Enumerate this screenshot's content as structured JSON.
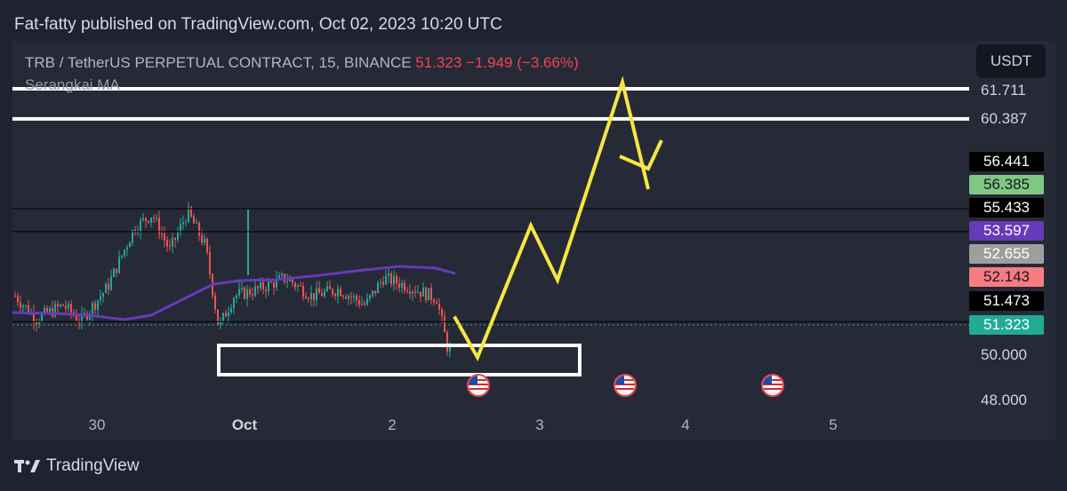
{
  "header": {
    "published_text": "Fat-fatty published on TradingView.com, Oct 02, 2023 10:20 UTC"
  },
  "legend": {
    "symbol": "TRB / TetherUS PERPETUAL CONTRACT, 15, BINANCE",
    "last_price": "51.323",
    "change": "−1.949 (−3.66%)",
    "indicator": "Serangkai    MA"
  },
  "currency_button": {
    "label": "USDT"
  },
  "price_axis": {
    "labels": [
      {
        "text": "61.711"
      },
      {
        "text": "60.387"
      },
      {
        "text": "50.000"
      },
      {
        "text": "48.000"
      }
    ],
    "tags": [
      {
        "text": "56.441",
        "bg": "#000000",
        "fg": "#ffffff"
      },
      {
        "text": "56.385",
        "bg": "#81c784",
        "fg": "#131722"
      },
      {
        "text": "55.433",
        "bg": "#000000",
        "fg": "#ffffff"
      },
      {
        "text": "53.597",
        "bg": "#673ab7",
        "fg": "#ffffff"
      },
      {
        "text": "52.655",
        "bg": "#9e9e9e",
        "fg": "#ffffff"
      },
      {
        "text": "52.143",
        "bg": "#f77c80",
        "fg": "#131722"
      },
      {
        "text": "51.473",
        "bg": "#000000",
        "fg": "#ffffff"
      },
      {
        "text": "51.323",
        "bg": "#22ab94",
        "fg": "#ffffff"
      }
    ]
  },
  "time_axis": {
    "labels": [
      {
        "text": "30",
        "bold": false
      },
      {
        "text": "Oct",
        "bold": true
      },
      {
        "text": "2",
        "bold": false
      },
      {
        "text": "3",
        "bold": false
      },
      {
        "text": "4",
        "bold": false
      },
      {
        "text": "5",
        "bold": false
      }
    ]
  },
  "events": [
    {
      "name": "us-economic-event"
    },
    {
      "name": "us-economic-event"
    },
    {
      "name": "us-economic-event"
    }
  ],
  "footer": {
    "brand": "TradingView"
  },
  "colors": {
    "background": "#1f2230",
    "chart_bg": "#262a37",
    "up_candle": "#26a69a",
    "down_candle": "#ef5350",
    "ma_line": "#673ab7",
    "projection": "#f5e642",
    "level_line": "#ffffff"
  },
  "chart_data": {
    "type": "candlestick",
    "symbol": "TRB / TetherUS PERPETUAL CONTRACT",
    "interval": "15",
    "exchange": "BINANCE",
    "horizontal_levels": [
      61.711,
      60.387,
      56.441,
      55.433,
      51.473
    ],
    "support_zone": {
      "low": 49.4,
      "high": 50.6
    },
    "projection_path": [
      51.7,
      49.9,
      55.7,
      53.3,
      62.0,
      57.3,
      58.6
    ],
    "last_price": 51.323
  }
}
